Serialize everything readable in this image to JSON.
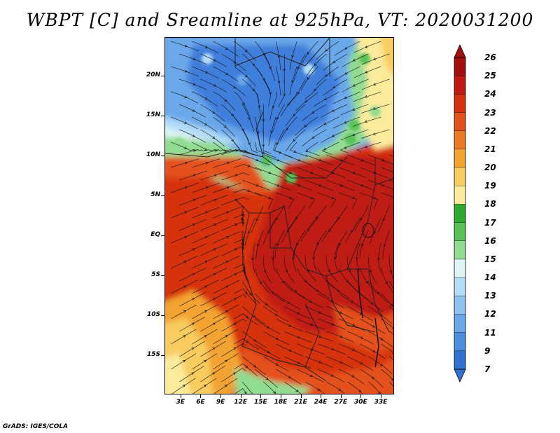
{
  "title": "WBPT [C] and Sreamline at 925hPa, VT: 2020031200",
  "footer": "GrADS: IGES/COLA",
  "map": {
    "lat_labels": [
      "20N",
      "15N",
      "10N",
      "5N",
      "EQ",
      "5S",
      "10S",
      "15S"
    ],
    "lon_labels": [
      "3E",
      "6E",
      "9E",
      "12E",
      "15E",
      "18E",
      "21E",
      "24E",
      "27E",
      "30E",
      "33E"
    ],
    "lat_values": [
      20,
      15,
      10,
      5,
      0,
      -5,
      -10,
      -15
    ],
    "lon_values": [
      3,
      6,
      9,
      12,
      15,
      18,
      21,
      24,
      27,
      30,
      33
    ]
  },
  "colorbar": {
    "labels": [
      "26",
      "25",
      "24",
      "23",
      "22",
      "21",
      "20",
      "19",
      "18",
      "17",
      "16",
      "15",
      "14",
      "13",
      "12",
      "11",
      "9",
      "7"
    ],
    "colors": [
      "#a50e0e",
      "#c01a12",
      "#d6300f",
      "#e4511a",
      "#ec7a22",
      "#f3a332",
      "#f8cc5e",
      "#fbeb9b",
      "#2eaa2e",
      "#58c258",
      "#92dc92",
      "#dff5f5",
      "#b2dcf8",
      "#8fc2f2",
      "#6aa8ea",
      "#4b8ee0",
      "#2f72d2"
    ]
  },
  "field_colors": {
    "deep_blue": "#3f7edb",
    "blue": "#6aa8ea",
    "light_blue": "#b2dcf8",
    "cyan_white": "#dff5f5",
    "light_green": "#92dc92",
    "green": "#58c258",
    "pale_yellow": "#fbeb9b",
    "yellow": "#f8cc5e",
    "orange": "#f3a332",
    "orange_red": "#e4511a",
    "red": "#d6300f",
    "dark_red": "#c01a12"
  }
}
